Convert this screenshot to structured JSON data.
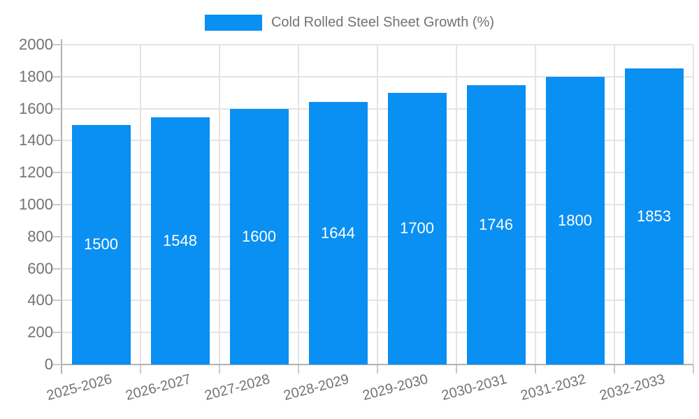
{
  "chart_data": {
    "type": "bar",
    "title": "",
    "xlabel": "",
    "ylabel": "",
    "legend": "Cold Rolled Steel Sheet Growth (%)",
    "legend_position": "top",
    "categories": [
      "2025-2026",
      "2026-2027",
      "2027-2028",
      "2028-2029",
      "2029-2030",
      "2030-2031",
      "2031-2032",
      "2032-2033"
    ],
    "values": [
      1500,
      1548,
      1600,
      1644,
      1700,
      1746,
      1800,
      1853
    ],
    "ylim": [
      0,
      2000
    ],
    "ytick_step": 200,
    "grid": true,
    "x_tick_rotation_deg": -15,
    "colors": {
      "bar": "#0a8ff2",
      "bar_label": "#ffffff",
      "axis_text": "#737373",
      "axis_line": "#b3b3b3",
      "gridline": "#e4e4e4",
      "tick": "#c9c9c9",
      "background": "#ffffff"
    }
  }
}
